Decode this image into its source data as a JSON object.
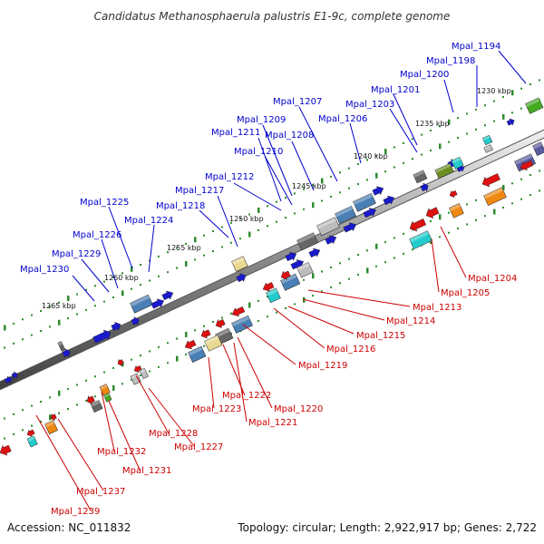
{
  "title": "Candidatus Methanosphaerula palustris E1-9c, complete genome",
  "footer": {
    "accession": "Accession: NC_011832",
    "stats": "Topology: circular; Length: 2,922,917 bp; Genes: 2,722"
  },
  "colors": {
    "top_strand_label": "#0000cc",
    "bottom_strand_label": "#cc0000",
    "backbone": "#808080",
    "tick": "#2e8b2e"
  },
  "scale_labels": [
    "1230 kbp",
    "1235 kbp",
    "1240 kbp",
    "1245 kbp",
    "1250 kbp",
    "1255 kbp",
    "1260 kbp",
    "1265 kbp"
  ],
  "top_labels": [
    "Mpal_1194",
    "Mpal_1198",
    "Mpal_1200",
    "Mpal_1201",
    "Mpal_1203",
    "Mpal_1206",
    "Mpal_1207",
    "Mpal_1208",
    "Mpal_1209",
    "Mpal_1210",
    "Mpal_1211",
    "Mpal_1212",
    "Mpal_1217",
    "Mpal_1218",
    "Mpal_1224",
    "Mpal_1225",
    "Mpal_1226",
    "Mpal_1229",
    "Mpal_1230"
  ],
  "bottom_labels": [
    "Mpal_1204",
    "Mpal_1205",
    "Mpal_1213",
    "Mpal_1214",
    "Mpal_1215",
    "Mpal_1216",
    "Mpal_1219",
    "Mpal_1220",
    "Mpal_1221",
    "Mpal_1222",
    "Mpal_1223",
    "Mpal_1227",
    "Mpal_1228",
    "Mpal_1231",
    "Mpal_1232",
    "Mpal_1237",
    "Mpal_1239"
  ],
  "gene_colors": {
    "forward": "#1a1acc",
    "reverse": "#dd1111",
    "steel": "#4a7fb5",
    "gray": "#666666",
    "light": "#bdbdbd",
    "cyan": "#22cccc",
    "orange": "#ee8811",
    "green": "#44aa22",
    "olive": "#6b8e23",
    "khaki": "#e8d890",
    "purple": "#5a5aa0"
  }
}
